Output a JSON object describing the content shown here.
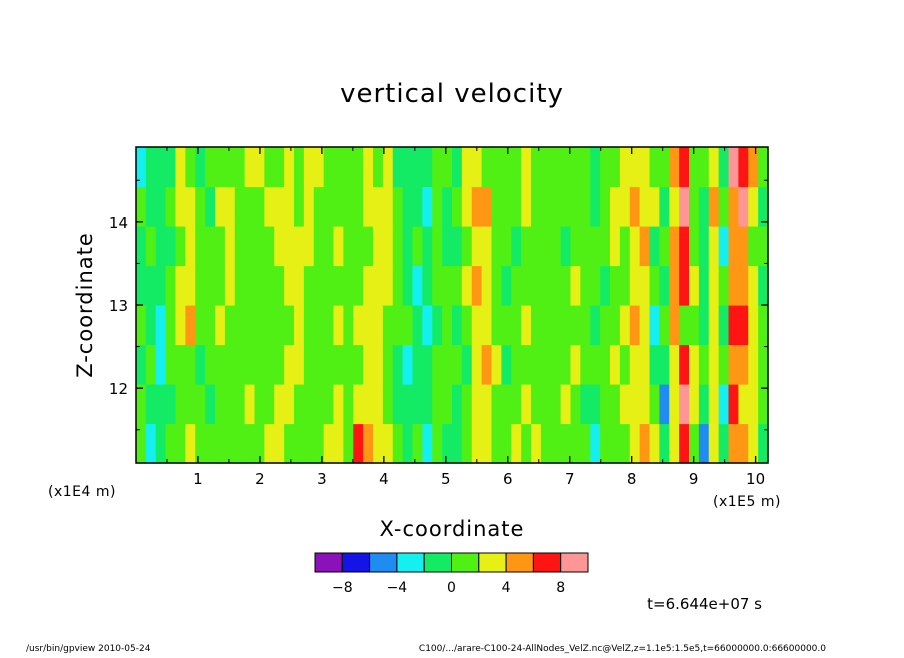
{
  "chart_data": {
    "type": "heatmap",
    "title": "vertical velocity",
    "xlabel": "X-coordinate",
    "ylabel": "Z-coordinate",
    "x_unit_left": "(x1E4 m)",
    "x_unit_right": "(x1E5 m)",
    "xlim": [
      0,
      10.2
    ],
    "ylim": [
      11.1,
      14.9
    ],
    "xticks": [
      {
        "value": 1,
        "label": "1"
      },
      {
        "value": 2,
        "label": "2"
      },
      {
        "value": 3,
        "label": "3"
      },
      {
        "value": 4,
        "label": "4"
      },
      {
        "value": 5,
        "label": "5"
      },
      {
        "value": 6,
        "label": "6"
      },
      {
        "value": 7,
        "label": "7"
      },
      {
        "value": 8,
        "label": "8"
      },
      {
        "value": 9,
        "label": "9"
      },
      {
        "value": 10,
        "label": "10"
      }
    ],
    "yticks": [
      {
        "value": 12,
        "label": "12"
      },
      {
        "value": 13,
        "label": "13"
      },
      {
        "value": 14,
        "label": "14"
      }
    ],
    "columns": [
      [
        0,
        0,
        -2,
        0,
        -2,
        -2,
        0,
        -4
      ],
      [
        -4,
        -2,
        0,
        -2,
        -2,
        0,
        -2,
        -2
      ],
      [
        -2,
        -2,
        -4,
        -4,
        -2,
        -2,
        -2,
        -2
      ],
      [
        0,
        -2,
        0,
        0,
        0,
        -2,
        0,
        -2
      ],
      [
        0,
        0,
        0,
        2,
        2,
        0,
        2,
        2
      ],
      [
        2,
        0,
        0,
        4,
        2,
        2,
        2,
        0
      ],
      [
        0,
        0,
        -2,
        0,
        0,
        0,
        0,
        -2
      ],
      [
        0,
        -2,
        0,
        0,
        0,
        0,
        -2,
        0
      ],
      [
        0,
        0,
        0,
        2,
        0,
        0,
        2,
        0
      ],
      [
        0,
        0,
        0,
        0,
        2,
        2,
        2,
        0
      ],
      [
        0,
        0,
        0,
        0,
        0,
        0,
        0,
        0
      ],
      [
        0,
        2,
        0,
        0,
        0,
        0,
        0,
        2
      ],
      [
        0,
        0,
        0,
        0,
        0,
        0,
        0,
        2
      ],
      [
        2,
        0,
        0,
        0,
        0,
        0,
        2,
        0
      ],
      [
        2,
        2,
        0,
        0,
        0,
        2,
        2,
        0
      ],
      [
        0,
        2,
        2,
        0,
        2,
        2,
        2,
        2
      ],
      [
        0,
        0,
        2,
        2,
        2,
        2,
        0,
        0
      ],
      [
        0,
        0,
        0,
        0,
        0,
        2,
        2,
        2
      ],
      [
        0,
        0,
        0,
        0,
        0,
        0,
        0,
        2
      ],
      [
        2,
        0,
        0,
        0,
        0,
        0,
        0,
        0
      ],
      [
        2,
        2,
        0,
        2,
        0,
        2,
        0,
        0
      ],
      [
        0,
        0,
        0,
        0,
        0,
        0,
        0,
        0
      ],
      [
        6,
        2,
        0,
        2,
        0,
        0,
        0,
        0
      ],
      [
        4,
        2,
        2,
        2,
        2,
        0,
        2,
        2
      ],
      [
        2,
        2,
        2,
        2,
        2,
        2,
        2,
        0
      ],
      [
        2,
        0,
        0,
        0,
        2,
        2,
        2,
        2
      ],
      [
        0,
        -2,
        -2,
        0,
        0,
        0,
        0,
        -2
      ],
      [
        -2,
        -2,
        -4,
        0,
        -2,
        -2,
        -2,
        -2
      ],
      [
        0,
        -2,
        -2,
        -2,
        -4,
        0,
        -2,
        -2
      ],
      [
        -4,
        -2,
        -2,
        -4,
        -2,
        -2,
        -4,
        -2
      ],
      [
        0,
        0,
        0,
        -2,
        0,
        0,
        0,
        0
      ],
      [
        -2,
        0,
        0,
        0,
        0,
        -2,
        -2,
        0
      ],
      [
        -2,
        -2,
        0,
        -2,
        0,
        -2,
        0,
        -2
      ],
      [
        0,
        0,
        -2,
        0,
        2,
        0,
        2,
        2
      ],
      [
        2,
        2,
        2,
        2,
        4,
        2,
        4,
        2
      ],
      [
        2,
        2,
        4,
        2,
        2,
        2,
        4,
        0
      ],
      [
        0,
        0,
        2,
        0,
        0,
        0,
        0,
        0
      ],
      [
        0,
        0,
        -2,
        0,
        -2,
        0,
        0,
        0
      ],
      [
        2,
        0,
        0,
        0,
        0,
        -2,
        0,
        0
      ],
      [
        0,
        2,
        0,
        2,
        0,
        0,
        2,
        2
      ],
      [
        2,
        0,
        0,
        0,
        0,
        0,
        0,
        0
      ],
      [
        0,
        0,
        0,
        0,
        0,
        0,
        0,
        0
      ],
      [
        0,
        0,
        0,
        0,
        0,
        0,
        0,
        0
      ],
      [
        0,
        2,
        0,
        0,
        0,
        -2,
        0,
        0
      ],
      [
        0,
        0,
        2,
        0,
        2,
        0,
        0,
        0
      ],
      [
        0,
        -2,
        0,
        0,
        0,
        0,
        0,
        0
      ],
      [
        -4,
        -2,
        0,
        -2,
        0,
        0,
        -2,
        -2
      ],
      [
        0,
        0,
        0,
        0,
        -2,
        0,
        0,
        0
      ],
      [
        0,
        0,
        2,
        0,
        0,
        2,
        2,
        0
      ],
      [
        0,
        2,
        0,
        2,
        0,
        0,
        2,
        2
      ],
      [
        2,
        2,
        2,
        4,
        2,
        2,
        4,
        2
      ],
      [
        4,
        2,
        2,
        2,
        2,
        4,
        2,
        2
      ],
      [
        2,
        0,
        -2,
        -4,
        0,
        -2,
        2,
        0
      ],
      [
        -2,
        -6,
        -2,
        0,
        -2,
        0,
        -2,
        0
      ],
      [
        2,
        2,
        2,
        4,
        4,
        4,
        2,
        4
      ],
      [
        6,
        8,
        6,
        0,
        6,
        6,
        8,
        6
      ],
      [
        0,
        2,
        2,
        0,
        2,
        0,
        0,
        0
      ],
      [
        -6,
        -2,
        0,
        -2,
        -2,
        -2,
        -2,
        0
      ],
      [
        2,
        2,
        2,
        2,
        2,
        2,
        4,
        2
      ],
      [
        -2,
        -4,
        0,
        -2,
        0,
        -4,
        0,
        -2
      ],
      [
        4,
        6,
        4,
        6,
        4,
        4,
        4,
        8
      ],
      [
        4,
        2,
        4,
        6,
        4,
        4,
        8,
        6
      ],
      [
        2,
        2,
        2,
        2,
        2,
        0,
        2,
        4
      ],
      [
        -2,
        0,
        0,
        0,
        -2,
        0,
        -2,
        0
      ]
    ],
    "colorbar": {
      "colors": [
        "#8a12b8",
        "#1414e6",
        "#1e8cf0",
        "#14f0f0",
        "#14eb64",
        "#50f014",
        "#e6f014",
        "#ff9614",
        "#ff1414",
        "#ff9696"
      ],
      "labels": [
        {
          "pos": 1,
          "label": "−8"
        },
        {
          "pos": 3,
          "label": "−4"
        },
        {
          "pos": 5,
          "label": "0"
        },
        {
          "pos": 7,
          "label": "4"
        },
        {
          "pos": 9,
          "label": "8"
        }
      ]
    },
    "time_label": "t=6.644e+07 s"
  },
  "footer": {
    "left": "/usr/bin/gpview   2010-05-24",
    "right": "C100/.../arare-C100-24-AllNodes_VelZ.nc@VelZ,z=1.1e5:1.5e5,t=66000000.0:66600000.0"
  }
}
